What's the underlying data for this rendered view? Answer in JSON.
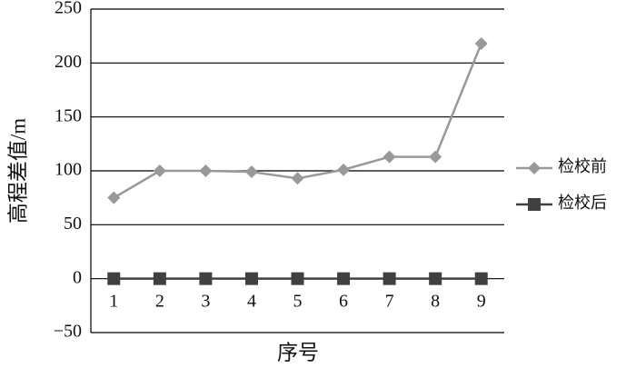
{
  "chart_data": {
    "type": "line",
    "x_label": "序号",
    "y_label": "高程差值/m",
    "categories": [
      "1",
      "2",
      "3",
      "4",
      "5",
      "6",
      "7",
      "8",
      "9"
    ],
    "series": [
      {
        "name": "检校前",
        "color": "#999999",
        "marker": "diamond",
        "values": [
          75,
          100,
          100,
          99,
          93,
          101,
          113,
          113,
          218
        ]
      },
      {
        "name": "检校后",
        "color": "#404040",
        "marker": "square",
        "values": [
          0,
          0,
          0,
          0,
          0,
          0,
          0,
          0,
          0
        ]
      }
    ],
    "ylim": [
      -50,
      250
    ],
    "yticks": [
      {
        "value": -50,
        "label": "−50"
      },
      0,
      50,
      100,
      150,
      200,
      250
    ],
    "grid": true,
    "legend": "right"
  }
}
